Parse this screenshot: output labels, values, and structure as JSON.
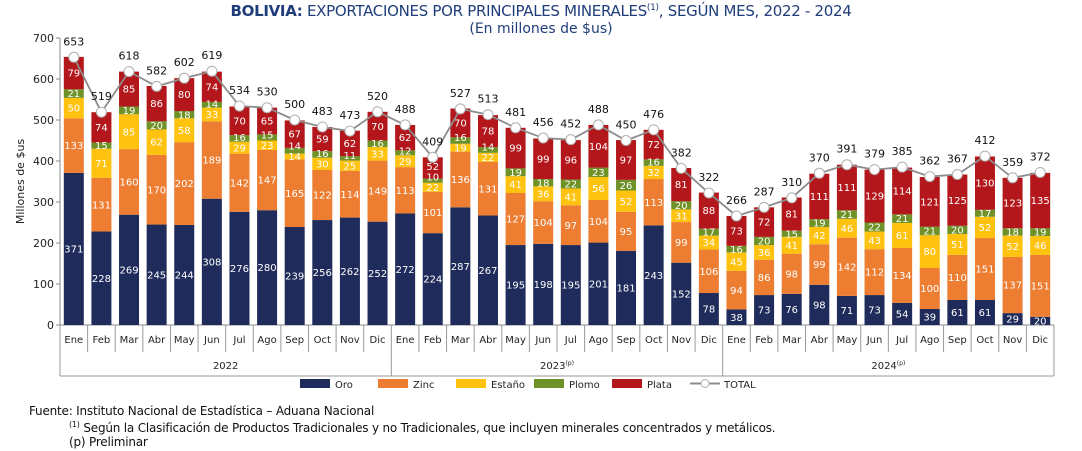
{
  "title": {
    "bold": "BOLIVIA:",
    "text": " EXPORTACIONES POR PRINCIPALES MINERALES",
    "sup": "(1)",
    "tail": ", SEGÚN MES, 2022 - 2024"
  },
  "subtitle": "(En millones de $us)",
  "footnotes": {
    "source": "Fuente: Instituto Nacional de Estadística – Aduana Nacional",
    "note_mark": "(1)",
    "note": " Según la Clasificación de Productos Tradicionales y no Tradicionales, que incluyen minerales concentrados y metálicos.",
    "prelim": "(p) Preliminar"
  },
  "chart_data": {
    "type": "bar",
    "stacked": true,
    "ylabel": "Millones de $us",
    "ylim": [
      0,
      700
    ],
    "yticks": [
      0,
      100,
      200,
      300,
      400,
      500,
      600,
      700
    ],
    "grid": false,
    "legend_position": "bottom",
    "years": [
      {
        "label": "2022",
        "sup": ""
      },
      {
        "label": "2023",
        "sup": "(p)"
      },
      {
        "label": "2024",
        "sup": "(p)"
      }
    ],
    "months": [
      "Ene",
      "Feb",
      "Mar",
      "Abr",
      "May",
      "Jun",
      "Jul",
      "Ago",
      "Sep",
      "Oct",
      "Nov",
      "Dic"
    ],
    "series": [
      {
        "name": "Oro",
        "color": "#1f2b5a",
        "values": [
          371,
          228,
          269,
          245,
          244,
          308,
          276,
          280,
          239,
          256,
          262,
          252,
          272,
          224,
          287,
          267,
          195,
          198,
          195,
          201,
          181,
          243,
          152,
          78,
          38,
          73,
          76,
          98,
          71,
          73,
          54,
          39,
          61,
          61,
          29,
          20
        ]
      },
      {
        "name": "Zinc",
        "color": "#ed7d31",
        "values": [
          133,
          131,
          160,
          170,
          202,
          189,
          142,
          147,
          165,
          122,
          114,
          149,
          113,
          101,
          136,
          131,
          127,
          104,
          97,
          104,
          95,
          113,
          99,
          106,
          94,
          86,
          98,
          99,
          142,
          112,
          134,
          100,
          110,
          151,
          137,
          151
        ]
      },
      {
        "name": "Estaño",
        "color": "#ffc20e",
        "values": [
          50,
          71,
          85,
          62,
          58,
          33,
          29,
          23,
          14,
          30,
          25,
          33,
          29,
          22,
          19,
          22,
          41,
          36,
          41,
          56,
          52,
          32,
          31,
          34,
          45,
          36,
          41,
          42,
          46,
          43,
          61,
          80,
          51,
          52,
          52,
          46
        ]
      },
      {
        "name": "Plomo",
        "color": "#6e9128",
        "values": [
          21,
          15,
          19,
          20,
          18,
          14,
          16,
          15,
          14,
          16,
          11,
          16,
          12,
          10,
          16,
          14,
          19,
          18,
          22,
          23,
          26,
          16,
          20,
          17,
          16,
          20,
          15,
          19,
          21,
          22,
          21,
          21,
          20,
          17,
          18,
          19
        ]
      },
      {
        "name": "Plata",
        "color": "#b3171b",
        "values": [
          79,
          74,
          85,
          86,
          80,
          74,
          70,
          65,
          67,
          59,
          62,
          70,
          62,
          52,
          70,
          78,
          99,
          99,
          96,
          104,
          97,
          72,
          81,
          88,
          73,
          72,
          81,
          111,
          111,
          129,
          114,
          121,
          125,
          130,
          123,
          135
        ]
      }
    ],
    "total": {
      "name": "TOTAL",
      "color": "#8c8c8c",
      "values": [
        653,
        519,
        618,
        582,
        602,
        619,
        534,
        530,
        500,
        483,
        473,
        520,
        488,
        409,
        527,
        513,
        481,
        456,
        452,
        488,
        450,
        476,
        382,
        322,
        266,
        287,
        310,
        370,
        391,
        379,
        385,
        362,
        367,
        412,
        359,
        372
      ]
    }
  }
}
